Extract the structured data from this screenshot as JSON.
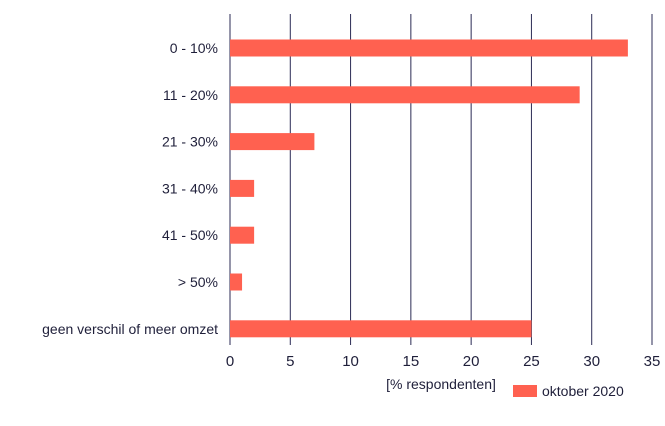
{
  "chart_data": {
    "type": "bar",
    "orientation": "horizontal",
    "categories": [
      "0 - 10%",
      "11 - 20%",
      "21 - 30%",
      "31 - 40%",
      "41 - 50%",
      "> 50%",
      "geen verschil of meer omzet"
    ],
    "series": [
      {
        "name": "oktober 2020",
        "values": [
          33,
          29,
          7,
          2,
          2,
          1,
          25
        ]
      }
    ],
    "xlabel": "[% respondenten]",
    "ylabel": "",
    "xlim": [
      0,
      35
    ],
    "xticks": [
      "0",
      "5",
      "10",
      "15",
      "20",
      "25",
      "30",
      "35"
    ],
    "grid": "vertical",
    "legend_position": "bottom-right",
    "colors": {
      "bar": "#ff6150",
      "grid": "#2b2b55",
      "text": "#1f1f3a"
    }
  }
}
